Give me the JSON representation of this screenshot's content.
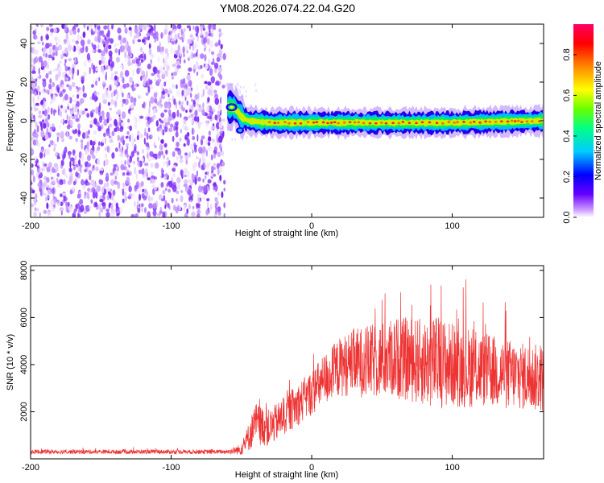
{
  "title": "YM08.2026.074.22.04.G20",
  "chart_data": [
    {
      "type": "heatmap",
      "xlabel": "Height of straight line (km)",
      "ylabel": "Frequency (Hz)",
      "xlim": [
        -200,
        165
      ],
      "ylim": [
        -50,
        50
      ],
      "xticks": [
        -200,
        -100,
        0,
        100
      ],
      "xtick_labels": [
        "-200",
        "-100",
        "0",
        "100"
      ],
      "yticks": [
        -40,
        -20,
        0,
        20,
        40
      ],
      "ytick_labels": [
        "-40",
        "-20",
        "0",
        "20",
        "40"
      ],
      "noise_region_x": [
        -200,
        -62
      ],
      "signal_onset_x": -60,
      "signal_frequency_hz": 0,
      "signal_band": [
        {
          "x": -60,
          "f": 7
        },
        {
          "x": -55,
          "f": 7
        },
        {
          "x": -50,
          "f": 2
        },
        {
          "x": -45,
          "f": 0
        },
        {
          "x": -30,
          "f": -1
        },
        {
          "x": 0,
          "f": -1
        },
        {
          "x": 50,
          "f": -1
        },
        {
          "x": 100,
          "f": -1
        },
        {
          "x": 165,
          "f": 0
        }
      ],
      "colorbar": {
        "label": "Normalized spectral amplitude",
        "range": [
          0,
          0.95
        ],
        "ticks": [
          0.0,
          0.2,
          0.4,
          0.6,
          0.8
        ],
        "tick_labels": [
          "0.0",
          "0.2",
          "0.4",
          "0.6",
          "0.8"
        ],
        "colormap": [
          "#ffffff",
          "#6600ff",
          "#0000ff",
          "#00ccff",
          "#00ff66",
          "#88ff00",
          "#ffff00",
          "#ff8800",
          "#ff0000",
          "#ff0066"
        ]
      },
      "grid": false
    },
    {
      "type": "line",
      "xlabel": "Height of straight line (km)",
      "ylabel": "SNR (10 * v/v)",
      "xlim": [
        -200,
        165
      ],
      "ylim": [
        0,
        8200
      ],
      "xticks": [
        -200,
        -100,
        0,
        100
      ],
      "xtick_labels": [
        "-200",
        "-100",
        "0",
        "100"
      ],
      "yticks": [
        2000,
        4000,
        6000,
        8000
      ],
      "ytick_labels": [
        "2000",
        "4000",
        "6000",
        "8000"
      ],
      "color": "#ee3333",
      "envelope": {
        "x": [
          -200,
          -150,
          -100,
          -60,
          -50,
          -45,
          -40,
          -35,
          -30,
          -20,
          -10,
          0,
          10,
          20,
          30,
          40,
          50,
          60,
          70,
          80,
          90,
          100,
          110,
          120,
          130,
          140,
          150,
          165
        ],
        "mean": [
          300,
          300,
          300,
          300,
          400,
          900,
          1500,
          1400,
          1300,
          1800,
          2300,
          2800,
          3400,
          3900,
          4100,
          4100,
          4200,
          4300,
          4200,
          4100,
          4100,
          4000,
          3900,
          3800,
          3700,
          3600,
          3500,
          3400
        ],
        "spread": [
          150,
          150,
          150,
          150,
          400,
          1000,
          1500,
          1400,
          1300,
          1400,
          1500,
          1600,
          1900,
          2100,
          2400,
          2600,
          2700,
          2900,
          3000,
          3100,
          3300,
          3000,
          2900,
          2700,
          2600,
          2500,
          2400,
          2400
        ]
      },
      "grid": false
    }
  ]
}
